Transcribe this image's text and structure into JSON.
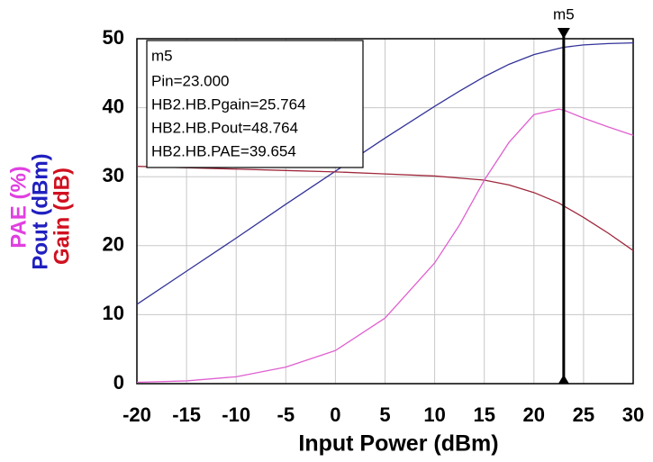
{
  "chart_data": {
    "type": "line",
    "xlabel": "Input Power (dBm)",
    "ylabels": [
      {
        "text": "PAE (%)",
        "color": "#e040e0"
      },
      {
        "text": "Pout (dBm)",
        "color": "#2020c0"
      },
      {
        "text": "Gain (dB)",
        "color": "#d01020"
      }
    ],
    "x": [
      -20,
      -15,
      -10,
      -5,
      0,
      5,
      10,
      12.5,
      15,
      17.5,
      20,
      22.5,
      23,
      25,
      27.5,
      30
    ],
    "series": [
      {
        "name": "Pout",
        "color": "#333399",
        "values": [
          11.5,
          16.3,
          21.1,
          26,
          30.8,
          35.6,
          40.2,
          42.4,
          44.5,
          46.3,
          47.7,
          48.6,
          48.764,
          49.1,
          49.3,
          49.4
        ]
      },
      {
        "name": "Gain",
        "color": "#a0283c",
        "values": [
          31.5,
          31.3,
          31.1,
          30.9,
          30.7,
          30.4,
          30.1,
          29.8,
          29.5,
          28.8,
          27.7,
          26.2,
          25.764,
          24.1,
          21.8,
          19.3
        ]
      },
      {
        "name": "PAE",
        "color": "#e060d0",
        "values": [
          0.2,
          0.4,
          1,
          2.4,
          4.8,
          9.5,
          17.5,
          23,
          29.5,
          35,
          39,
          39.8,
          39.654,
          38.5,
          37.2,
          36
        ]
      }
    ],
    "xlim": [
      -20,
      30
    ],
    "ylim": [
      0,
      50
    ],
    "xticks": [
      -20,
      -15,
      -10,
      -5,
      0,
      5,
      10,
      15,
      20,
      25,
      30
    ],
    "yticks": [
      0,
      10,
      20,
      30,
      40,
      50
    ],
    "grid": true,
    "marker": {
      "label": "m5",
      "x": 23,
      "lines": [
        "Pin=23.000",
        "HB2.HB.Pgain=25.764",
        "HB2.HB.Pout=48.764",
        "HB2.HB.PAE=39.654"
      ]
    }
  }
}
